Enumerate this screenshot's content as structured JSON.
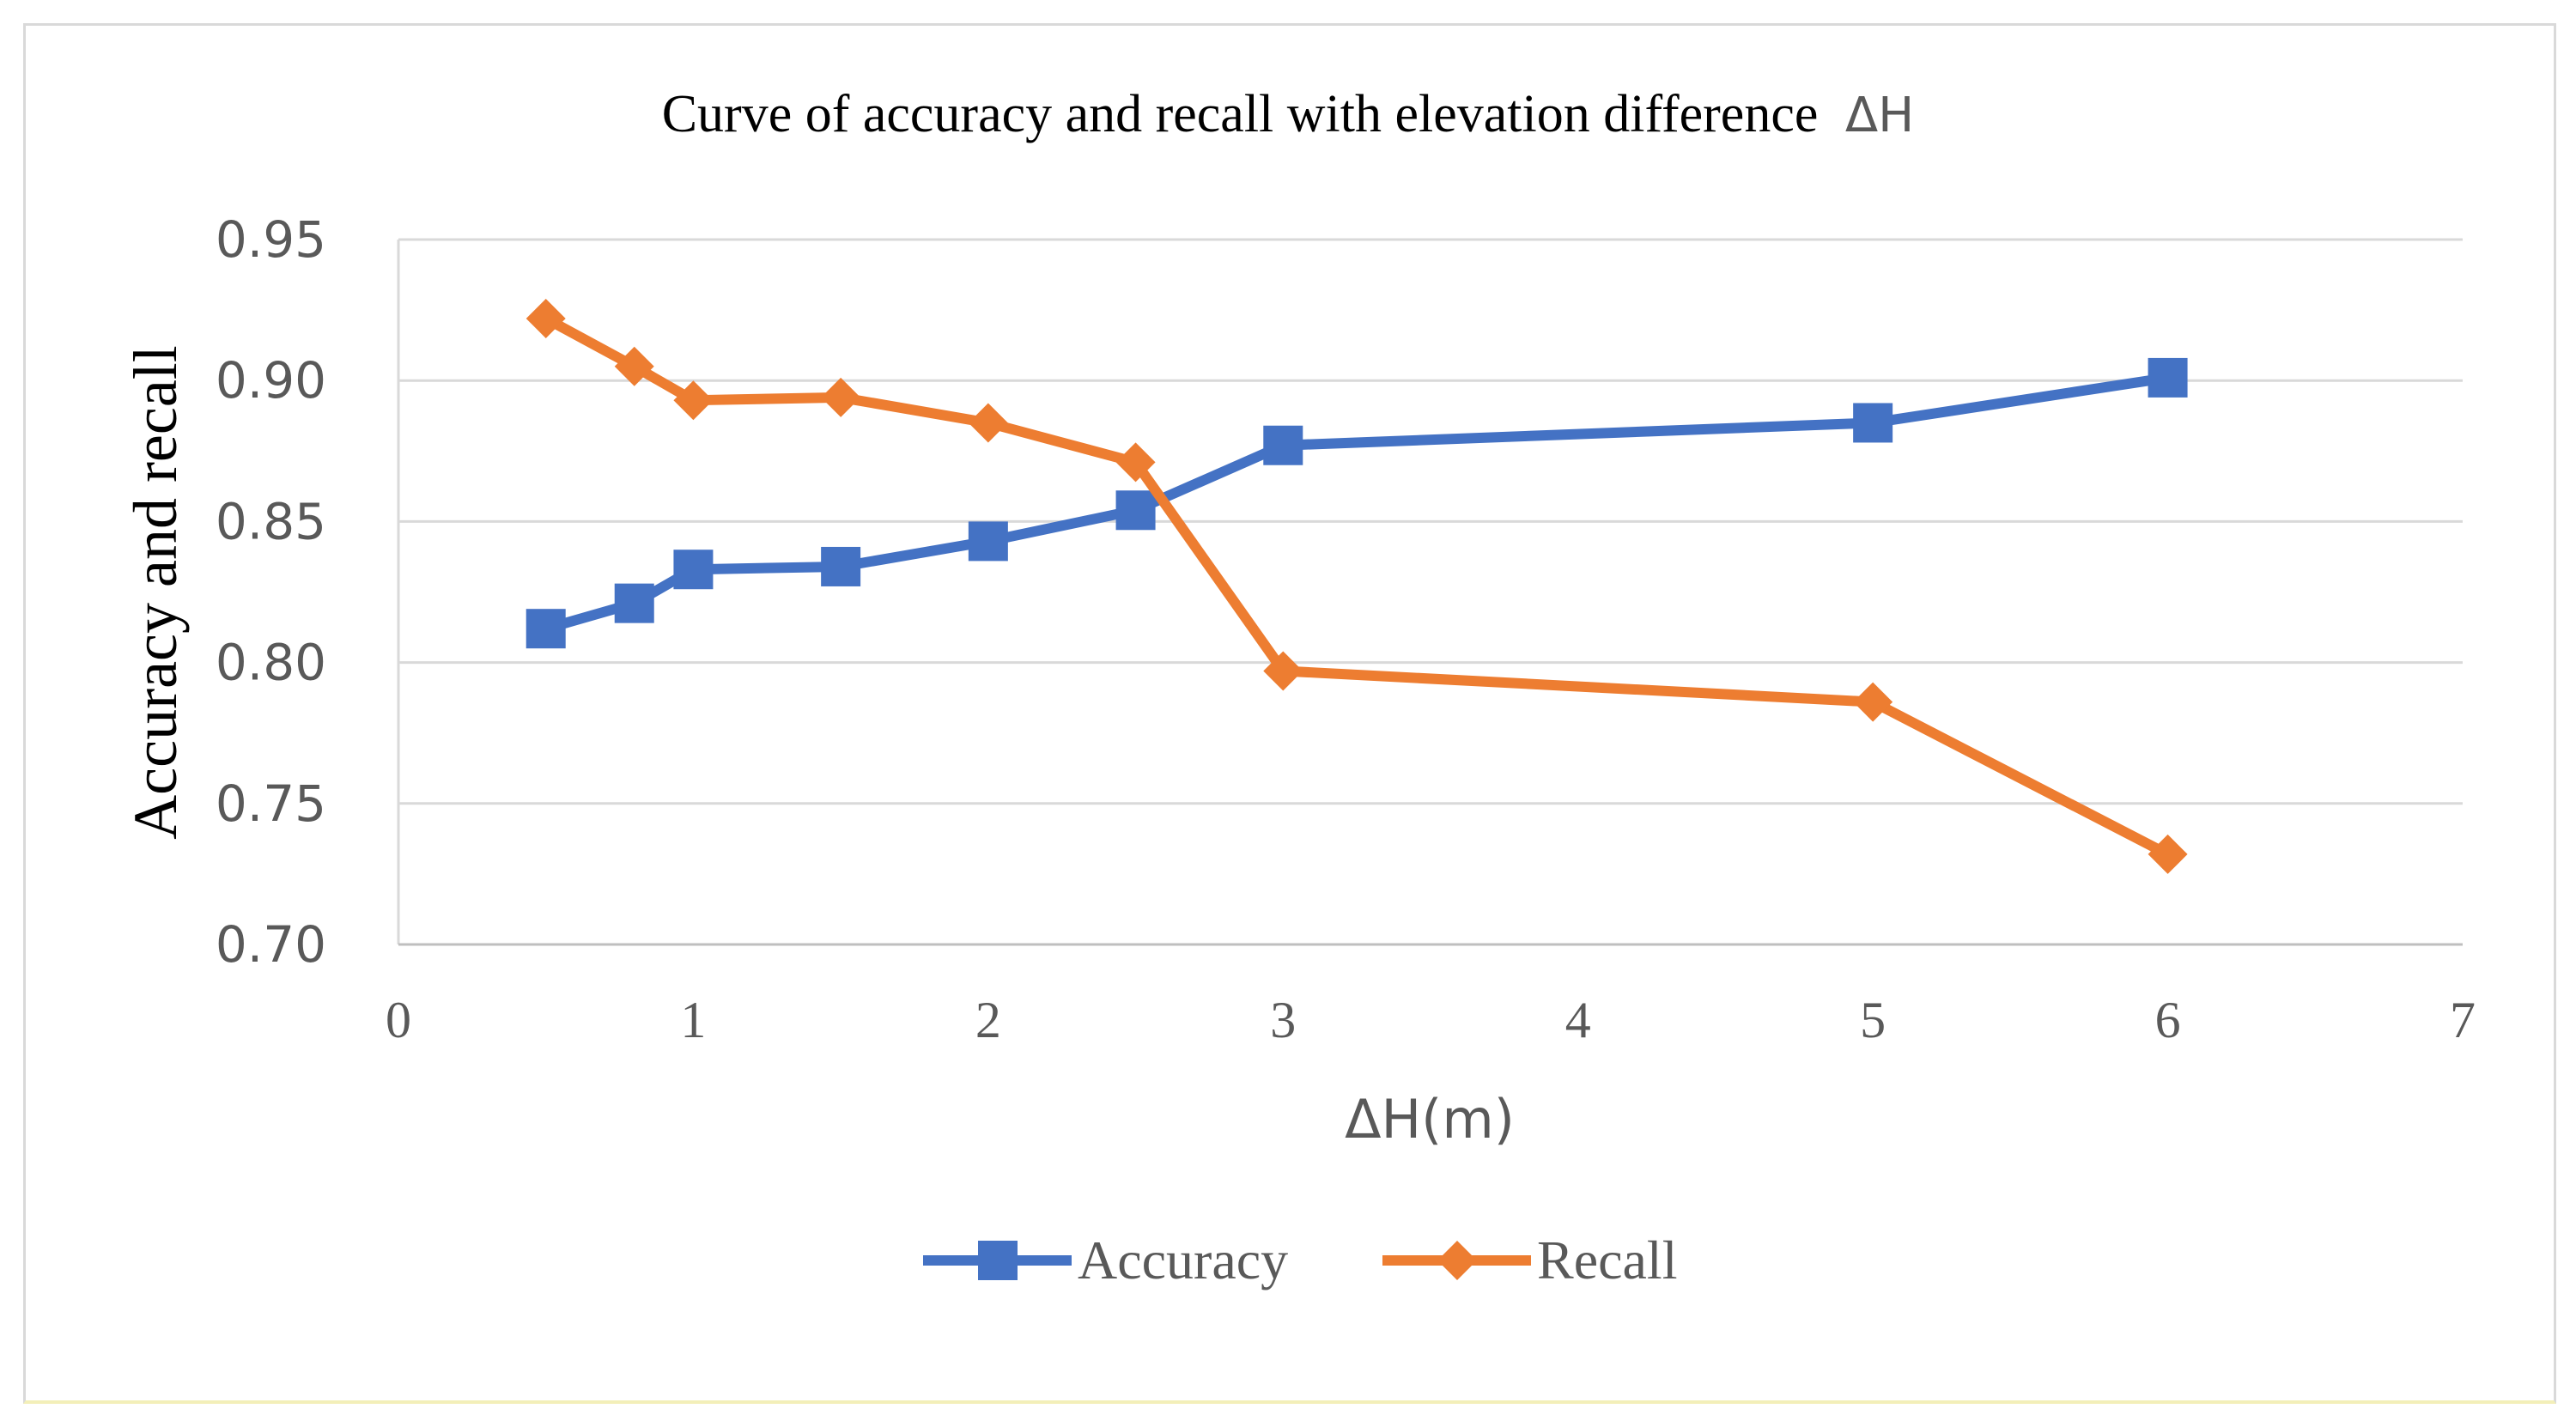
{
  "chart_data": {
    "type": "line",
    "title": "Curve of accuracy and recall with elevation difference",
    "title_symbol": "ΔH",
    "xlabel": "ΔH(m)",
    "ylabel": "Accuracy and recall",
    "xlim": [
      0,
      7
    ],
    "ylim": [
      0.7,
      0.95
    ],
    "x_ticks": [
      "0",
      "1",
      "2",
      "3",
      "4",
      "5",
      "6",
      "7"
    ],
    "y_ticks": [
      "0.70",
      "0.75",
      "0.80",
      "0.85",
      "0.90",
      "0.95"
    ],
    "grid": true,
    "legend_position": "bottom",
    "x": [
      0.5,
      0.8,
      1,
      1.5,
      2,
      2.5,
      3,
      5,
      6
    ],
    "series": [
      {
        "name": "Accuracy",
        "marker": "square",
        "color": "#4472C4",
        "values": [
          0.812,
          0.821,
          0.833,
          0.834,
          0.843,
          0.854,
          0.877,
          0.885,
          0.901
        ]
      },
      {
        "name": "Recall",
        "marker": "diamond",
        "color": "#ED7D31",
        "values": [
          0.922,
          0.905,
          0.893,
          0.894,
          0.885,
          0.871,
          0.797,
          0.786,
          0.732
        ]
      }
    ]
  }
}
